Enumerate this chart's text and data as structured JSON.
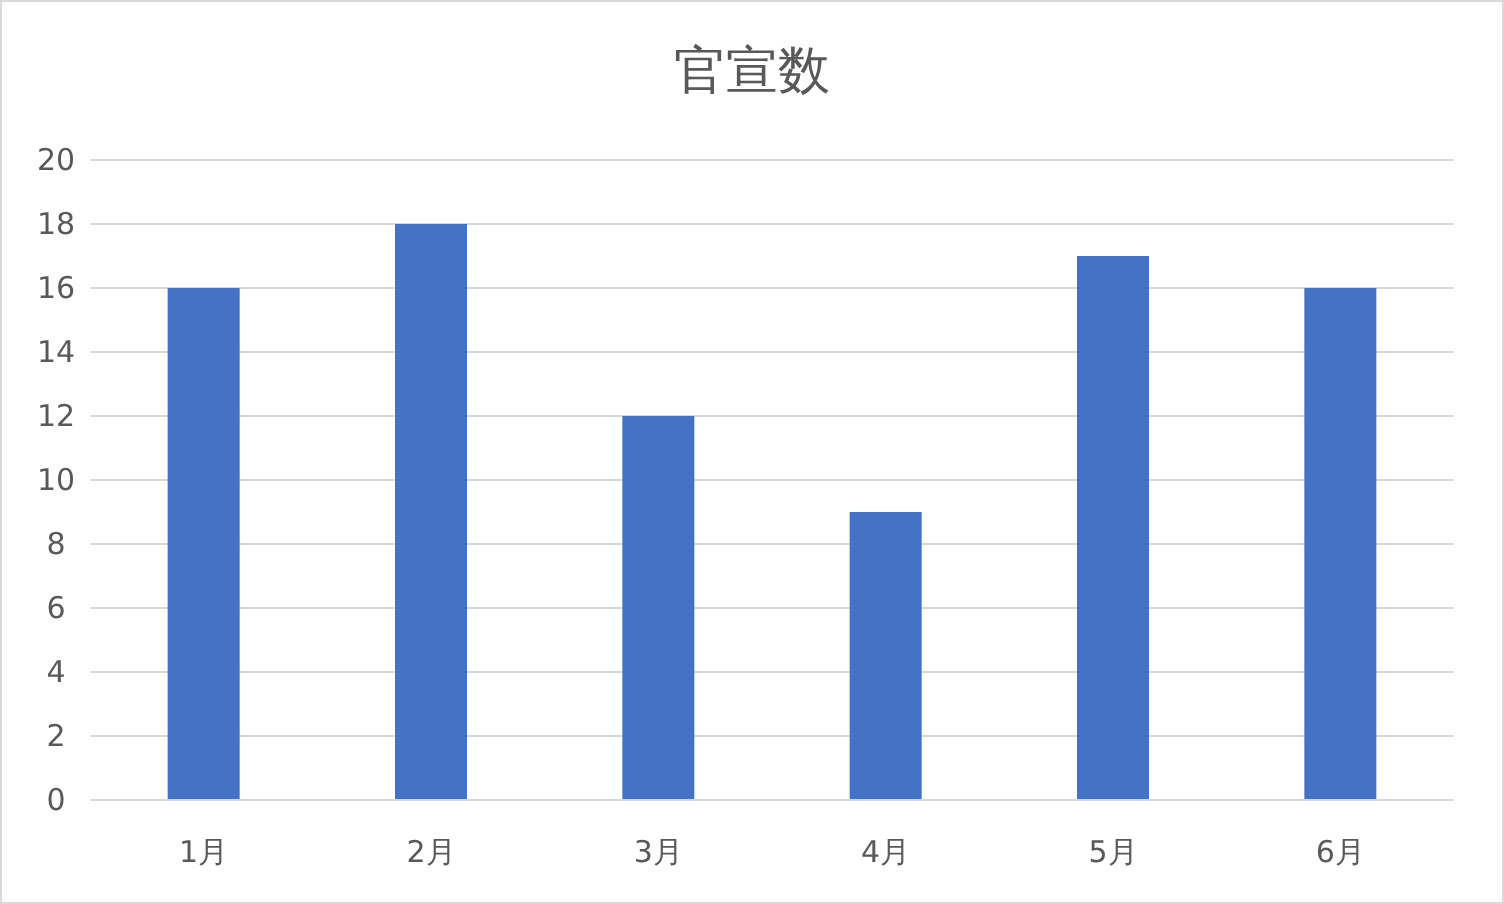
{
  "chart_data": {
    "type": "bar",
    "title": "官宣数",
    "categories": [
      "1月",
      "2月",
      "3月",
      "4月",
      "5月",
      "6月"
    ],
    "values": [
      16,
      18,
      12,
      9,
      17,
      16
    ],
    "color": "#4472c4",
    "ylim": [
      0,
      20
    ],
    "yticks": [
      0,
      2,
      4,
      6,
      8,
      10,
      12,
      14,
      16,
      18,
      20
    ],
    "grid": "y"
  }
}
